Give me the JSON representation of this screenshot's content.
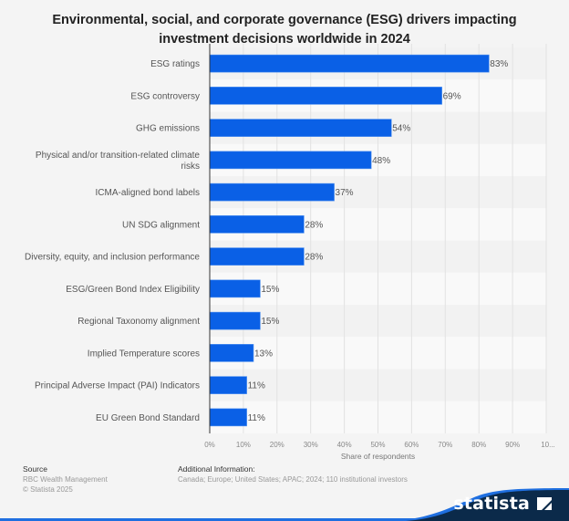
{
  "chart_data": {
    "type": "bar",
    "orientation": "horizontal",
    "title": "Environmental, social, and corporate governance (ESG) drivers impacting investment decisions worldwide in 2024",
    "title_lines": [
      "Environmental, social, and corporate governance (ESG) drivers impacting",
      "investment decisions worldwide in 2024"
    ],
    "categories": [
      "ESG ratings",
      "ESG controversy",
      "GHG emissions",
      "Physical and/or transition-related climate risks",
      "ICMA-aligned bond labels",
      "UN SDG alignment",
      "Diversity, equity, and inclusion performance",
      "ESG/Green Bond Index Eligibility",
      "Regional Taxonomy alignment",
      "Implied Temperature scores",
      "Principal Adverse Impact (PAI) Indicators",
      "EU Green Bond Standard"
    ],
    "category_label_lines": [
      [
        "ESG ratings"
      ],
      [
        "ESG controversy"
      ],
      [
        "GHG emissions"
      ],
      [
        "Physical and/or transition-related climate",
        "risks"
      ],
      [
        "ICMA-aligned bond labels"
      ],
      [
        "UN SDG alignment"
      ],
      [
        "Diversity, equity, and inclusion performance"
      ],
      [
        "ESG/Green Bond Index Eligibility"
      ],
      [
        "Regional Taxonomy alignment"
      ],
      [
        "Implied Temperature scores"
      ],
      [
        "Principal Adverse Impact (PAI) Indicators"
      ],
      [
        "EU Green Bond Standard"
      ]
    ],
    "values": [
      83,
      69,
      54,
      48,
      37,
      28,
      28,
      15,
      15,
      13,
      11,
      11
    ],
    "value_labels": [
      "83%",
      "69%",
      "54%",
      "48%",
      "37%",
      "28%",
      "28%",
      "15%",
      "15%",
      "13%",
      "11%",
      "11%"
    ],
    "xlabel": "Share of respondents",
    "ylabel": "",
    "xlim": [
      0,
      100
    ],
    "x_ticks": [
      0,
      10,
      20,
      30,
      40,
      50,
      60,
      70,
      80,
      90,
      100
    ],
    "x_tick_labels": [
      "0%",
      "10%",
      "20%",
      "30%",
      "40%",
      "50%",
      "60%",
      "70%",
      "80%",
      "90%",
      "10..."
    ],
    "grid": true,
    "legend": "none",
    "bar_color": "#0a60e6"
  },
  "footer": {
    "source_heading": "Source",
    "source": "RBC Wealth Management",
    "copyright": "© Statista 2025",
    "additional_heading": "Additional Information:",
    "additional": "Canada; Europe; United States; APAC; 2024; 110 institutional investors"
  },
  "brand": {
    "name": "statista",
    "dark_color": "#0b2a4a",
    "accent_color": "#1f6fe0"
  }
}
